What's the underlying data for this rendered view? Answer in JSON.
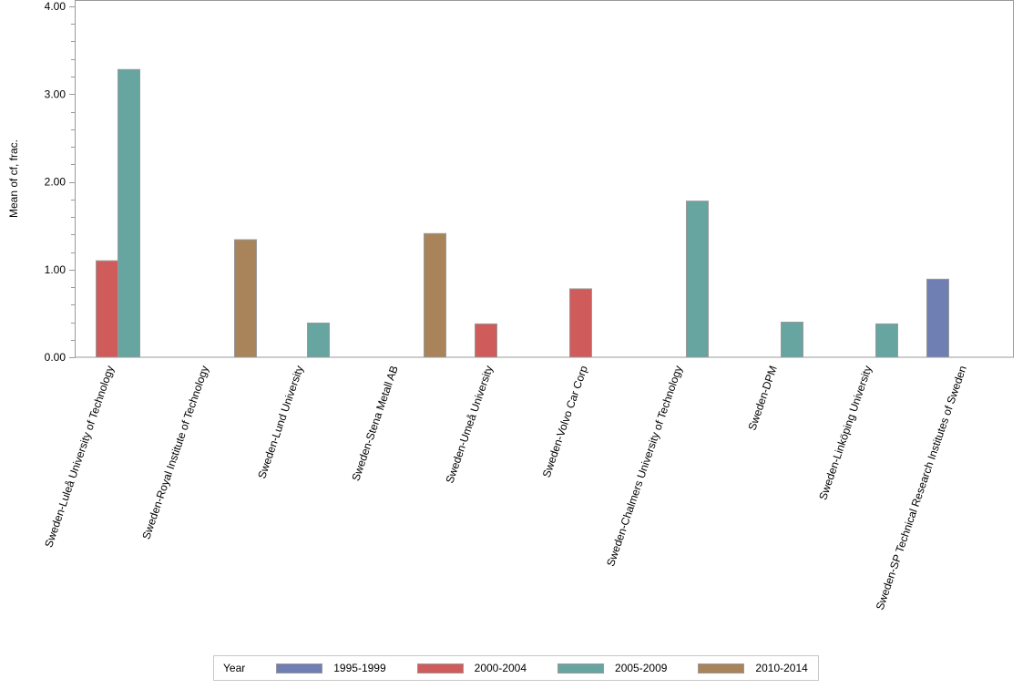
{
  "chart_data": {
    "type": "bar",
    "title": "",
    "xlabel": "",
    "ylabel": "Mean of cf, frac.",
    "ylim": [
      0,
      4
    ],
    "yticks": [
      "0.00",
      "1.00",
      "2.00",
      "3.00",
      "4.00"
    ],
    "y_minor_tick_step": 0.2,
    "grid": false,
    "legend_position": "bottom",
    "legend_title": "Year",
    "categories": [
      "Sweden-Luleå University of Technology",
      "Sweden-Royal Institute of Technology",
      "Sweden-Lund University",
      "Sweden-Stena Metall AB",
      "Sweden-Umeå University",
      "Sweden-Volvo Car Corp",
      "Sweden-Chalmers University of Technology",
      "Sweden-DPM",
      "Sweden-Linköping University",
      "Sweden-SP Technical Research Institutes of Sweden"
    ],
    "series": [
      {
        "name": "1995-1999",
        "color": "#6f7eb3",
        "values": [
          null,
          null,
          null,
          null,
          null,
          null,
          null,
          null,
          null,
          0.89
        ]
      },
      {
        "name": "2000-2004",
        "color": "#d05b5b",
        "values": [
          1.1,
          null,
          null,
          null,
          0.38,
          0.78,
          null,
          null,
          null,
          null
        ]
      },
      {
        "name": "2005-2009",
        "color": "#66a5a0",
        "values": [
          3.28,
          null,
          0.39,
          null,
          null,
          null,
          1.78,
          0.4,
          0.38,
          null
        ]
      },
      {
        "name": "2010-2014",
        "color": "#a9845a",
        "values": [
          null,
          1.34,
          null,
          1.41,
          null,
          null,
          null,
          null,
          null,
          null
        ]
      }
    ]
  }
}
